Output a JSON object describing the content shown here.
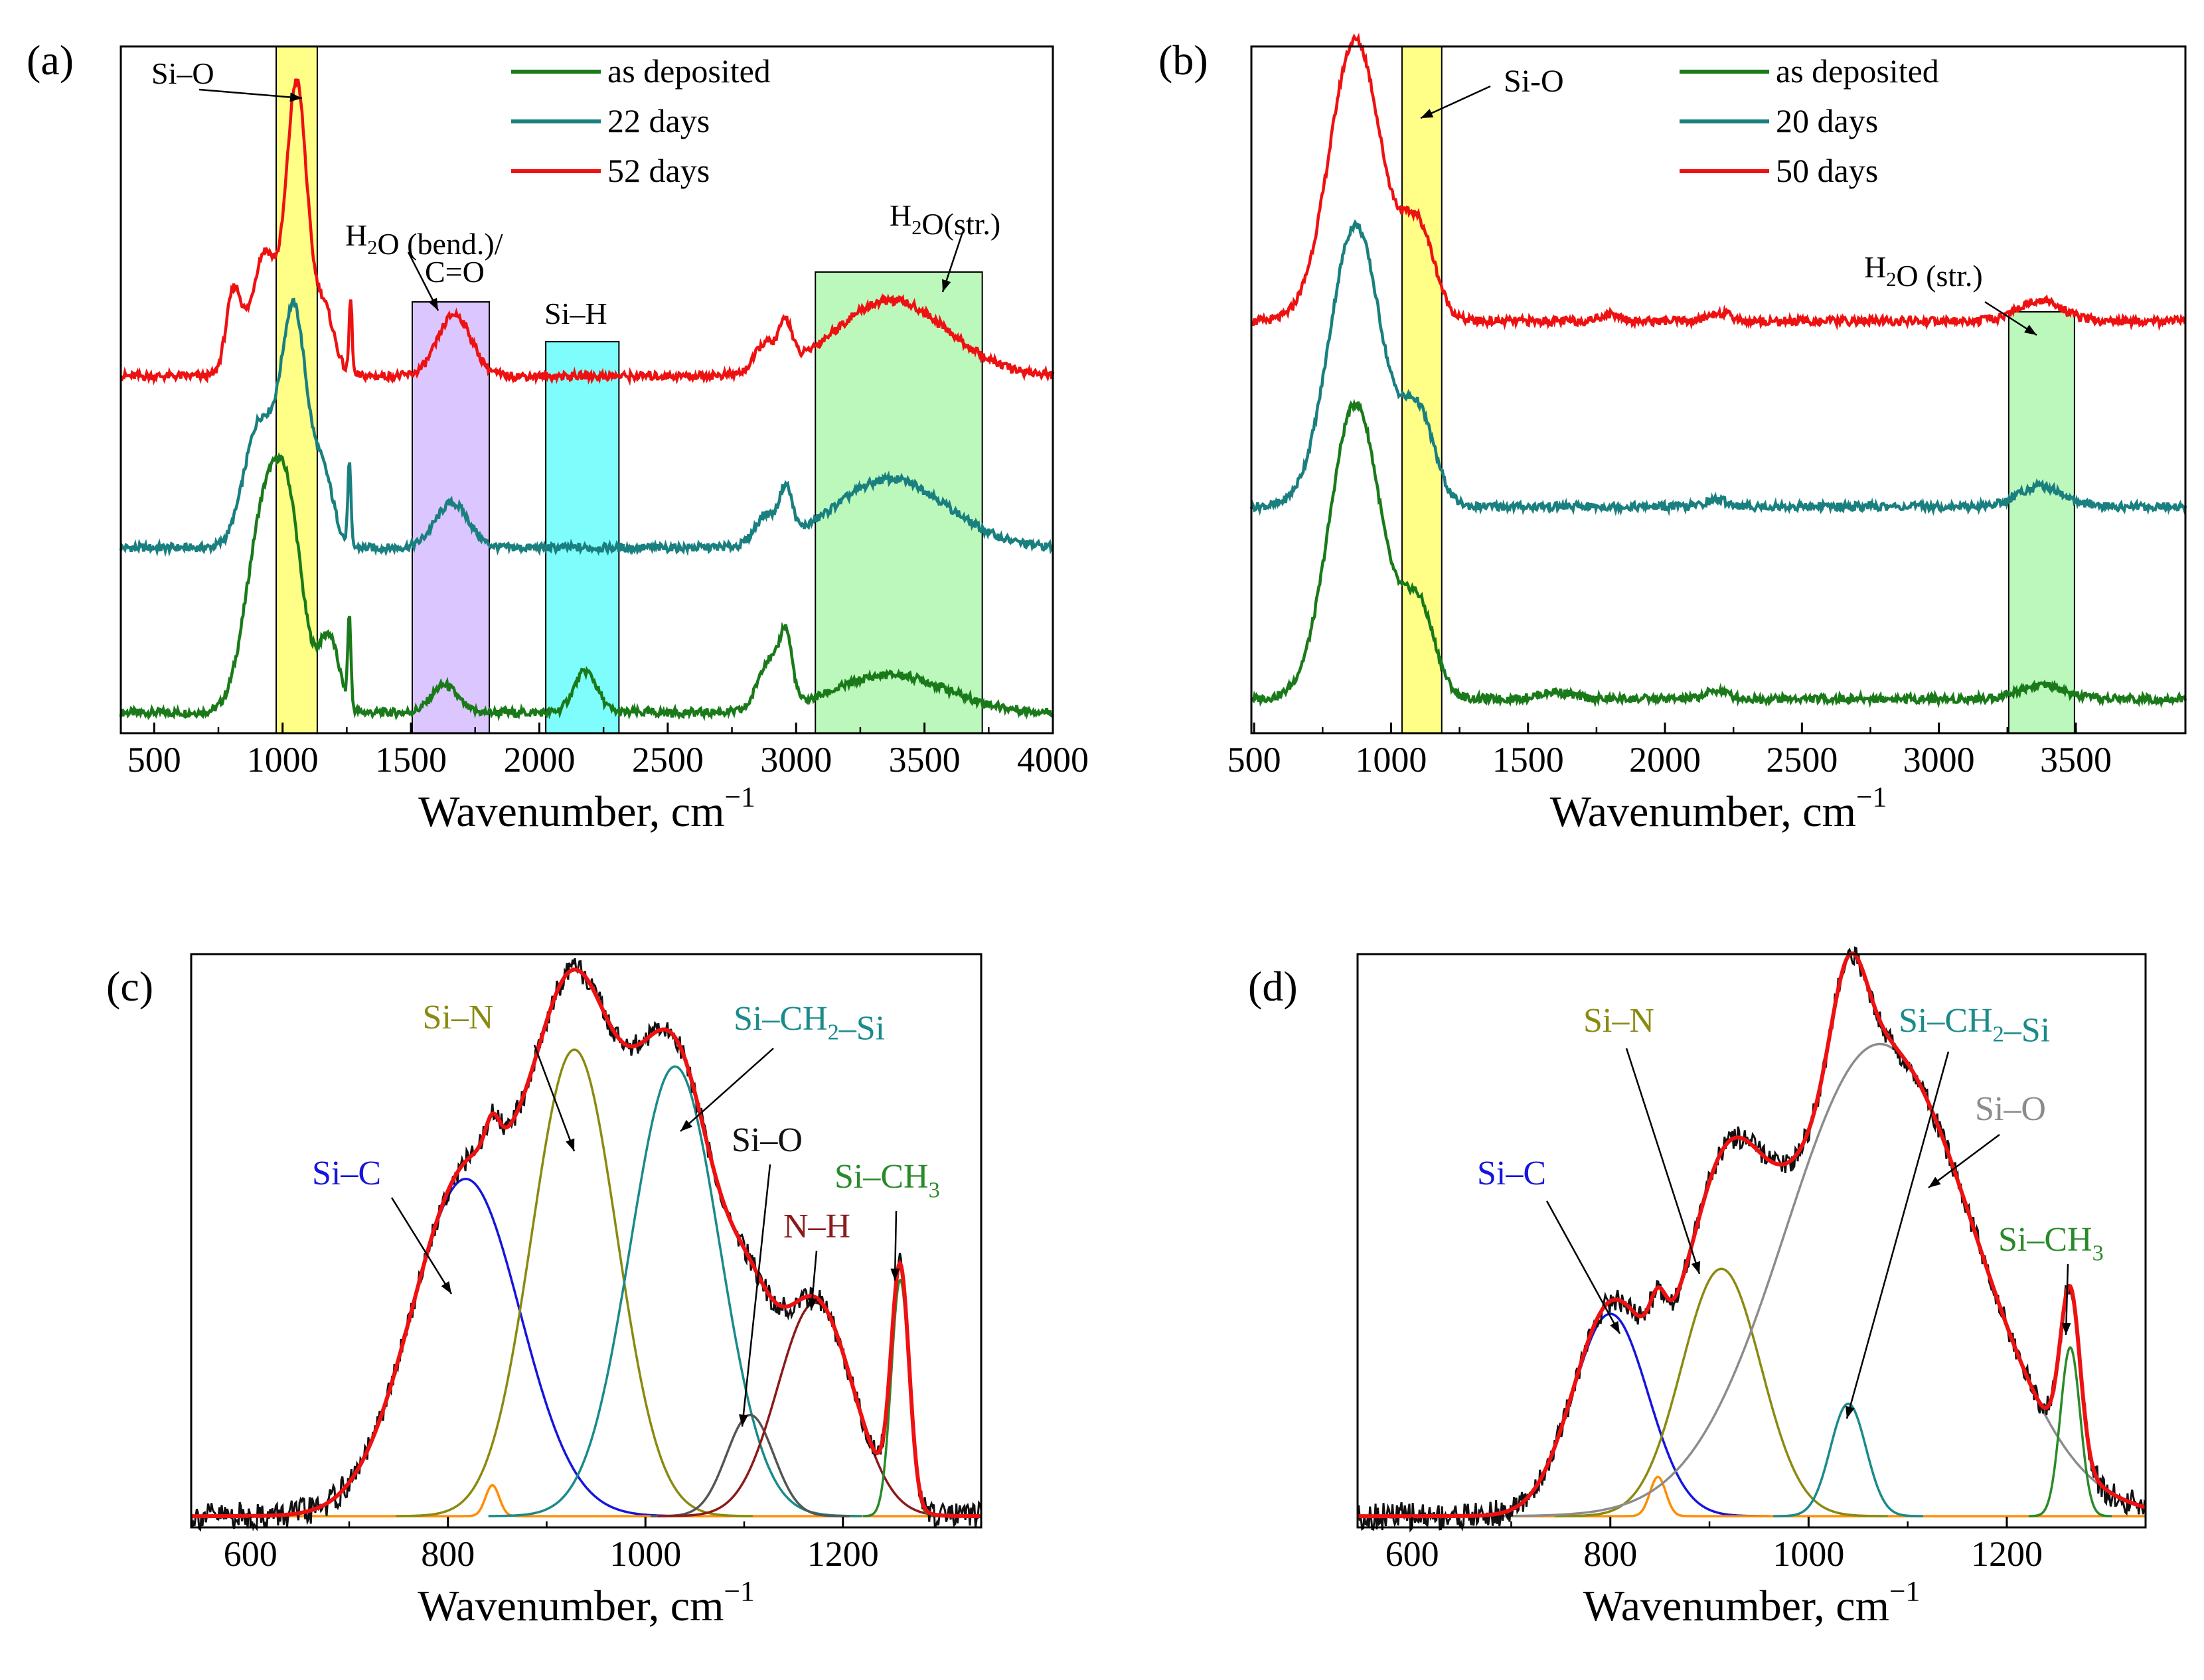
{
  "figure": {
    "panel_labels": [
      "(a)",
      "(b)",
      "(c)",
      "(d)"
    ]
  },
  "colors": {
    "as_deposited": "#1a7a1a",
    "mid": "#1a7f7f",
    "late": "#ee1111",
    "si_c": "#1515dd",
    "si_n": "#8a8a10",
    "si_ch2_si": "#1a8a8a",
    "si_o_c": "#555555",
    "si_o_d": "#8c8c8c",
    "n_h": "#8b1a1a",
    "si_ch3": "#2a8a2a",
    "orange": "#ff8c00",
    "fit": "#ee1111",
    "exp": "#111111",
    "band_yellow": "#ffff88",
    "band_purple": "#dcc6ff",
    "band_cyan": "#7ffcfc",
    "band_green": "#bcf7bc"
  },
  "chart_data": [
    {
      "id": "a",
      "type": "line",
      "title": "",
      "xlabel": "Wavenumber, cm",
      "xlabel_sup": "−1",
      "ylabel": "",
      "xlim": [
        370,
        4000
      ],
      "ylim": [
        0,
        1
      ],
      "xticks": [
        500,
        1000,
        1500,
        2000,
        2500,
        3000,
        3500,
        4000
      ],
      "xtick_labels": [
        "500",
        "1000",
        "1500",
        "2000",
        "2500",
        "3000",
        "3500",
        "4000"
      ],
      "legend_position": "top-center",
      "series": [
        {
          "name": "as deposited",
          "offset": 0.03,
          "color_key": "as_deposited",
          "peaks": [
            [
              930,
              0.29,
              70
            ],
            [
              1030,
              0.22,
              55
            ],
            [
              1180,
              0.11,
              40
            ],
            [
              1260,
              0.13,
              6
            ],
            [
              1630,
              0.04,
              50
            ],
            [
              2180,
              0.06,
              45
            ],
            [
              2890,
              0.07,
              40
            ],
            [
              2960,
              0.1,
              25
            ],
            [
              3370,
              0.055,
              220
            ]
          ]
        },
        {
          "name": "22 days",
          "offset": 0.27,
          "color_key": "mid",
          "peaks": [
            [
              910,
              0.18,
              60
            ],
            [
              1045,
              0.34,
              50
            ],
            [
              1160,
              0.1,
              40
            ],
            [
              1260,
              0.12,
              6
            ],
            [
              1660,
              0.065,
              65
            ],
            [
              2880,
              0.04,
              40
            ],
            [
              2960,
              0.07,
              25
            ],
            [
              3370,
              0.1,
              220
            ]
          ]
        },
        {
          "name": "52 days",
          "offset": 0.52,
          "color_key": "late",
          "peaks": [
            [
              810,
              0.12,
              30
            ],
            [
              930,
              0.18,
              50
            ],
            [
              1055,
              0.42,
              40
            ],
            [
              1160,
              0.1,
              40
            ],
            [
              1265,
              0.11,
              6
            ],
            [
              1670,
              0.09,
              65
            ],
            [
              2880,
              0.04,
              40
            ],
            [
              2960,
              0.06,
              25
            ],
            [
              3370,
              0.11,
              220
            ]
          ]
        }
      ],
      "bands": [
        {
          "x0": 975,
          "x1": 1135,
          "color_key": "band_yellow"
        },
        {
          "x0": 1505,
          "x1": 1805,
          "color_key": "band_purple"
        },
        {
          "x0": 2025,
          "x1": 2310,
          "color_key": "band_cyan"
        },
        {
          "x0": 3075,
          "x1": 3725,
          "color_key": "band_green"
        }
      ],
      "annotations": [
        {
          "text": "Si–O"
        },
        {
          "text": "H",
          "sub": "2",
          "rest": "O (bend.)/"
        },
        {
          "text": "C=O"
        },
        {
          "text": "Si–H"
        },
        {
          "text": "H",
          "sub": "2",
          "rest": "O(str.)"
        }
      ]
    },
    {
      "id": "b",
      "type": "line",
      "title": "",
      "xlabel": "Wavenumber, cm",
      "xlabel_sup": "−1",
      "ylabel": "",
      "xlim": [
        490,
        3900
      ],
      "ylim": [
        0,
        1
      ],
      "xticks": [
        500,
        1000,
        1500,
        2000,
        2500,
        3000,
        3500
      ],
      "xtick_labels": [
        "500",
        "1000",
        "1500",
        "2000",
        "2500",
        "3000",
        "3500"
      ],
      "legend_position": "top-center",
      "series": [
        {
          "name": "as deposited",
          "offset": 0.05,
          "color_key": "as_deposited",
          "peaks": [
            [
              870,
              0.43,
              95
            ],
            [
              1100,
              0.13,
              60
            ],
            [
              1600,
              0.01,
              60
            ],
            [
              2190,
              0.012,
              40
            ],
            [
              3370,
              0.02,
              80
            ]
          ]
        },
        {
          "name": "20 days",
          "offset": 0.33,
          "color_key": "mid",
          "peaks": [
            [
              870,
              0.41,
              95
            ],
            [
              1100,
              0.13,
              60
            ],
            [
              2190,
              0.01,
              40
            ],
            [
              3370,
              0.03,
              80
            ]
          ]
        },
        {
          "name": "50 days",
          "offset": 0.6,
          "color_key": "late",
          "peaks": [
            [
              870,
              0.41,
              95
            ],
            [
              1100,
              0.13,
              60
            ],
            [
              1800,
              0.01,
              40
            ],
            [
              2200,
              0.012,
              40
            ],
            [
              3370,
              0.03,
              80
            ]
          ]
        }
      ],
      "bands": [
        {
          "x0": 1040,
          "x1": 1185,
          "color_key": "band_yellow"
        },
        {
          "x0": 3255,
          "x1": 3495,
          "color_key": "band_green"
        }
      ],
      "annotations": [
        {
          "text": "Si-O"
        },
        {
          "text": "H",
          "sub": "2",
          "rest": "O (str.)"
        }
      ]
    },
    {
      "id": "c",
      "type": "line",
      "title": "",
      "xlabel": "Wavenumber, cm",
      "xlabel_sup": "−1",
      "ylabel": "",
      "xlim": [
        540,
        1340
      ],
      "ylim": [
        -0.02,
        1
      ],
      "xticks": [
        600,
        800,
        1000,
        1200
      ],
      "xtick_labels": [
        "600",
        "800",
        "1000",
        "1200"
      ],
      "components": [
        {
          "name": "Si–C",
          "center": 818,
          "amp": 0.6,
          "sigma": 55,
          "color_key": "si_c"
        },
        {
          "name": "orange",
          "center": 845,
          "amp": 0.055,
          "sigma": 7,
          "color_key": "orange"
        },
        {
          "name": "Si–N",
          "center": 928,
          "amp": 0.83,
          "sigma": 43,
          "color_key": "si_n"
        },
        {
          "name": "Si–CH2–Si",
          "center": 1030,
          "amp": 0.8,
          "sigma": 45,
          "color_key": "si_ch2_si"
        },
        {
          "name": "Si–O",
          "center": 1106,
          "amp": 0.18,
          "sigma": 24,
          "color_key": "si_o_c"
        },
        {
          "name": "N–H",
          "center": 1172,
          "amp": 0.38,
          "sigma": 38,
          "color_key": "n_h"
        },
        {
          "name": "Si–CH3",
          "center": 1258,
          "amp": 0.42,
          "sigma": 9,
          "color_key": "si_ch3"
        }
      ],
      "labels": [
        {
          "text": "Si–N",
          "color_key": "si_n"
        },
        {
          "text": "Si–CH",
          "sub": "2",
          "rest": "–Si",
          "color_key": "si_ch2_si"
        },
        {
          "text": "Si–O",
          "color_key": "exp"
        },
        {
          "text": "Si–C",
          "color_key": "si_c"
        },
        {
          "text": "N–H",
          "color_key": "n_h"
        },
        {
          "text": "Si–CH",
          "sub": "3",
          "color_key": "si_ch3"
        }
      ]
    },
    {
      "id": "d",
      "type": "line",
      "title": "",
      "xlabel": "Wavenumber, cm",
      "xlabel_sup": "−1",
      "ylabel": "",
      "xlim": [
        545,
        1340
      ],
      "ylim": [
        -0.02,
        1
      ],
      "xticks": [
        600,
        800,
        1000,
        1200
      ],
      "xtick_labels": [
        "600",
        "800",
        "1000",
        "1200"
      ],
      "components": [
        {
          "name": "Si–C",
          "center": 800,
          "amp": 0.36,
          "sigma": 38,
          "color_key": "si_c"
        },
        {
          "name": "orange",
          "center": 848,
          "amp": 0.07,
          "sigma": 8,
          "color_key": "orange"
        },
        {
          "name": "Si–N",
          "center": 912,
          "amp": 0.44,
          "sigma": 40,
          "color_key": "si_n"
        },
        {
          "name": "Si–O",
          "center": 1072,
          "amp": 0.84,
          "sigma": 95,
          "color_key": "si_o_d"
        },
        {
          "name": "Si–CH2–Si",
          "center": 1040,
          "amp": 0.2,
          "sigma": 18,
          "color_key": "si_ch2_si"
        },
        {
          "name": "Si–CH3",
          "center": 1264,
          "amp": 0.3,
          "sigma": 10,
          "color_key": "si_ch3"
        }
      ],
      "labels": [
        {
          "text": "Si–N",
          "color_key": "si_n"
        },
        {
          "text": "Si–CH",
          "sub": "2",
          "rest": "–Si",
          "color_key": "si_ch2_si"
        },
        {
          "text": "Si–O",
          "color_key": "si_o_d"
        },
        {
          "text": "Si–C",
          "color_key": "si_c"
        },
        {
          "text": "Si–CH",
          "sub": "3",
          "color_key": "si_ch3"
        }
      ]
    }
  ]
}
